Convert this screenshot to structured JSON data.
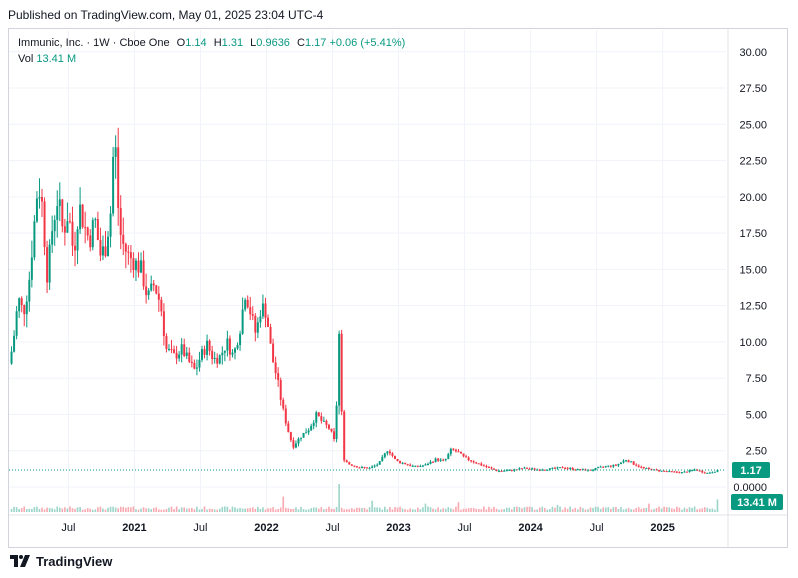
{
  "header": {
    "published": "Published on TradingView.com, May 01, 2025 23:04 UTC-4"
  },
  "legend": {
    "symbol": "Immunic, Inc. · 1W · Cboe One",
    "o_label": "O",
    "o_value": "1.14",
    "h_label": "H",
    "h_value": "1.31",
    "l_label": "L",
    "l_value": "0.9636",
    "c_label": "C",
    "c_value": "1.17",
    "change": "+0.06 (+5.41%)",
    "vol_label": "Vol",
    "vol_value": "13.41 M"
  },
  "price_tag": "1.17",
  "volume_tag": "13.41 M",
  "footer": {
    "brand": "TradingView"
  },
  "colors": {
    "up": "#089981",
    "down": "#f23645",
    "grid": "#f0f3fa",
    "text": "#131722"
  },
  "chart_data": {
    "type": "candlestick",
    "title": "Immunic, Inc. · 1W · Cboe One",
    "y_ticks": [
      "30.00",
      "27.50",
      "25.00",
      "22.50",
      "20.00",
      "17.50",
      "15.00",
      "12.50",
      "10.00",
      "7.50",
      "5.00",
      "2.50",
      "0.0000"
    ],
    "ylim": [
      0,
      31.5
    ],
    "x_ticks": [
      "Jul",
      "2021",
      "Jul",
      "2022",
      "Jul",
      "2023",
      "Jul",
      "2024",
      "Jul",
      "2025"
    ],
    "x_tick_dates": [
      2020.5,
      2021.0,
      2021.5,
      2022.0,
      2022.5,
      2023.0,
      2023.5,
      2024.0,
      2024.5,
      2025.0
    ],
    "xlim": [
      2020.05,
      2025.48
    ],
    "price_path": [
      [
        2020.05,
        8.5
      ],
      [
        2020.08,
        9.8
      ],
      [
        2020.12,
        13.0
      ],
      [
        2020.16,
        12.0
      ],
      [
        2020.2,
        14.0
      ],
      [
        2020.24,
        18.0
      ],
      [
        2020.27,
        21.0
      ],
      [
        2020.3,
        19.5
      ],
      [
        2020.34,
        14.5
      ],
      [
        2020.38,
        18.0
      ],
      [
        2020.42,
        20.0
      ],
      [
        2020.46,
        17.5
      ],
      [
        2020.5,
        19.0
      ],
      [
        2020.54,
        16.0
      ],
      [
        2020.58,
        19.5
      ],
      [
        2020.62,
        18.0
      ],
      [
        2020.66,
        17.0
      ],
      [
        2020.7,
        18.5
      ],
      [
        2020.74,
        16.0
      ],
      [
        2020.78,
        16.5
      ],
      [
        2020.82,
        19.0
      ],
      [
        2020.85,
        25.0
      ],
      [
        2020.87,
        20.0
      ],
      [
        2020.9,
        17.0
      ],
      [
        2020.95,
        16.0
      ],
      [
        2021.0,
        15.5
      ],
      [
        2021.05,
        15.0
      ],
      [
        2021.1,
        13.0
      ],
      [
        2021.15,
        14.0
      ],
      [
        2021.2,
        12.5
      ],
      [
        2021.24,
        9.5
      ],
      [
        2021.3,
        9.0
      ],
      [
        2021.36,
        9.5
      ],
      [
        2021.42,
        8.5
      ],
      [
        2021.46,
        8.0
      ],
      [
        2021.5,
        9.0
      ],
      [
        2021.55,
        9.8
      ],
      [
        2021.6,
        8.8
      ],
      [
        2021.65,
        9.0
      ],
      [
        2021.7,
        10.0
      ],
      [
        2021.75,
        9.0
      ],
      [
        2021.8,
        11.0
      ],
      [
        2021.84,
        13.5
      ],
      [
        2021.88,
        12.0
      ],
      [
        2021.92,
        10.5
      ],
      [
        2021.96,
        12.5
      ],
      [
        2022.0,
        12.0
      ],
      [
        2022.04,
        9.0
      ],
      [
        2022.08,
        7.5
      ],
      [
        2022.12,
        5.5
      ],
      [
        2022.16,
        4.0
      ],
      [
        2022.2,
        2.8
      ],
      [
        2022.26,
        3.5
      ],
      [
        2022.32,
        4.0
      ],
      [
        2022.38,
        5.0
      ],
      [
        2022.42,
        4.5
      ],
      [
        2022.48,
        4.0
      ],
      [
        2022.52,
        3.0
      ],
      [
        2022.55,
        10.5
      ],
      [
        2022.58,
        2.0
      ],
      [
        2022.62,
        1.6
      ],
      [
        2022.7,
        1.35
      ],
      [
        2022.78,
        1.3
      ],
      [
        2022.85,
        1.6
      ],
      [
        2022.92,
        2.6
      ],
      [
        2022.98,
        1.8
      ],
      [
        2023.05,
        1.6
      ],
      [
        2023.12,
        1.4
      ],
      [
        2023.2,
        1.5
      ],
      [
        2023.28,
        1.9
      ],
      [
        2023.35,
        1.8
      ],
      [
        2023.4,
        2.6
      ],
      [
        2023.45,
        2.4
      ],
      [
        2023.5,
        2.0
      ],
      [
        2023.58,
        1.7
      ],
      [
        2023.66,
        1.4
      ],
      [
        2023.75,
        1.1
      ],
      [
        2023.85,
        1.15
      ],
      [
        2023.95,
        1.3
      ],
      [
        2024.05,
        1.2
      ],
      [
        2024.15,
        1.25
      ],
      [
        2024.25,
        1.35
      ],
      [
        2024.35,
        1.2
      ],
      [
        2024.45,
        1.15
      ],
      [
        2024.55,
        1.4
      ],
      [
        2024.65,
        1.5
      ],
      [
        2024.72,
        1.9
      ],
      [
        2024.78,
        1.6
      ],
      [
        2024.85,
        1.3
      ],
      [
        2024.95,
        1.15
      ],
      [
        2025.05,
        1.05
      ],
      [
        2025.15,
        1.0
      ],
      [
        2025.25,
        1.2
      ],
      [
        2025.33,
        0.95
      ],
      [
        2025.38,
        1.05
      ],
      [
        2025.42,
        1.17
      ]
    ],
    "volume_spikes": [
      [
        2022.55,
        1.0
      ],
      [
        2022.12,
        0.55
      ],
      [
        2022.8,
        0.4
      ],
      [
        2023.2,
        0.3
      ],
      [
        2023.45,
        0.35
      ],
      [
        2024.2,
        0.25
      ],
      [
        2024.9,
        0.3
      ],
      [
        2025.42,
        0.45
      ]
    ],
    "last_close": 1.17
  }
}
